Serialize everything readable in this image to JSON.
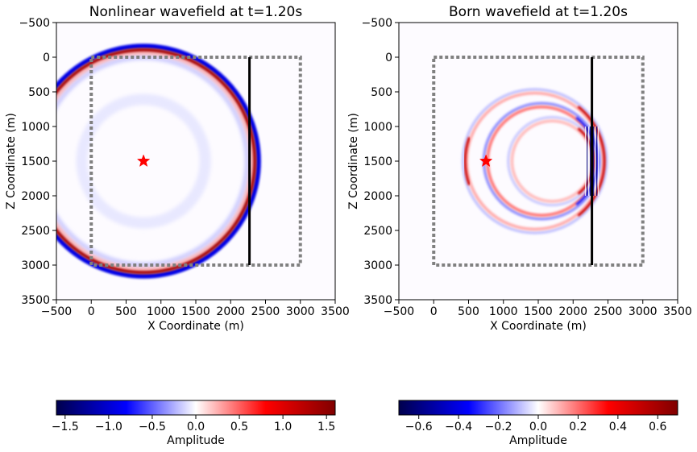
{
  "chart_data": [
    {
      "type": "heatmap",
      "title": "Nonlinear wavefield at t=1.20s",
      "xlabel": "X Coordinate (m)",
      "ylabel": "Z Coordinate (m)",
      "xlim": [
        -500,
        3500
      ],
      "ylim": [
        3500,
        -500
      ],
      "xticks": [
        "−500",
        "0",
        "500",
        "1000",
        "1500",
        "2000",
        "2500",
        "3000",
        "3500"
      ],
      "yticks": [
        "−500",
        "0",
        "500",
        "1000",
        "1500",
        "2000",
        "2500",
        "3000",
        "3500"
      ],
      "source": {
        "x": 750,
        "z": 1500,
        "marker": "star",
        "color": "#ff0000"
      },
      "receiver_line": {
        "x": 2270,
        "z0": 0,
        "z1": 3000,
        "color": "#000000"
      },
      "domain_box": {
        "x0": 0,
        "x1": 3000,
        "z0": 0,
        "z1": 3000,
        "style": "dotted",
        "color": "#808080"
      },
      "wavefront": {
        "radius": 1610,
        "inner_band": "red",
        "outer_band": "blue"
      },
      "colorbar": {
        "label": "Amplitude",
        "range": [
          -1.6,
          1.6
        ],
        "ticks": [
          "−1.5",
          "−1.0",
          "−0.5",
          "0.0",
          "0.5",
          "1.0",
          "1.5"
        ],
        "colormap": "seismic"
      }
    },
    {
      "type": "heatmap",
      "title": "Born wavefield at t=1.20s",
      "xlabel": "X Coordinate (m)",
      "ylabel": "Z Coordinate (m)",
      "xlim": [
        -500,
        3500
      ],
      "ylim": [
        3500,
        -500
      ],
      "xticks": [
        "−500",
        "0",
        "500",
        "1000",
        "1500",
        "2000",
        "2500",
        "3000",
        "3500"
      ],
      "yticks": [
        "−500",
        "0",
        "500",
        "1000",
        "1500",
        "2000",
        "2500",
        "3000",
        "3500"
      ],
      "source": {
        "x": 750,
        "z": 1500,
        "marker": "star",
        "color": "#ff0000"
      },
      "receiver_line": {
        "x": 2270,
        "z0": 0,
        "z1": 3000,
        "color": "#000000"
      },
      "domain_box": {
        "x0": 0,
        "x1": 3000,
        "z0": 0,
        "z1": 3000,
        "style": "dotted",
        "color": "#808080"
      },
      "rings": [
        {
          "cx": 1450,
          "cz": 1500,
          "r": 1000
        },
        {
          "cx": 1550,
          "cz": 1500,
          "r": 800
        },
        {
          "cx": 1700,
          "cz": 1500,
          "r": 600
        }
      ],
      "colorbar": {
        "label": "Amplitude",
        "range": [
          -0.7,
          0.7
        ],
        "ticks": [
          "−0.6",
          "−0.4",
          "−0.2",
          "0.0",
          "0.2",
          "0.4",
          "0.6"
        ],
        "colormap": "seismic"
      }
    }
  ]
}
